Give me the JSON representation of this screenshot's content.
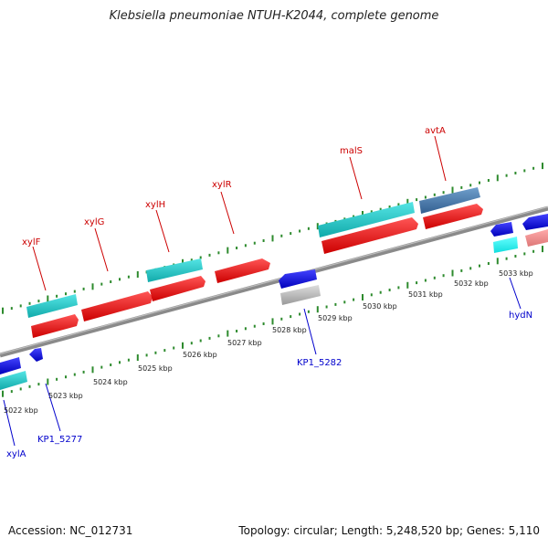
{
  "title": "Klebsiella pneumoniae NTUH-K2044, complete genome",
  "footer": {
    "accession": "Accession: NC_012731",
    "summary": "Topology: circular; Length: 5,248,520 bp; Genes: 5,110"
  },
  "scale_labels": [
    "5022 kbp",
    "5023 kbp",
    "5024 kbp",
    "5025 kbp",
    "5026 kbp",
    "5027 kbp",
    "5028 kbp",
    "5029 kbp",
    "5030 kbp",
    "5031 kbp",
    "5032 kbp",
    "5033 kbp"
  ],
  "gene_labels": {
    "xylF": "xylF",
    "xylG": "xylG",
    "xylH": "xylH",
    "xylR": "xylR",
    "malS": "malS",
    "avtA": "avtA",
    "xylA": "xylA",
    "KP1_5277": "KP1_5277",
    "KP1_5282": "KP1_5282",
    "hydN": "hydN"
  },
  "colors": {
    "forward_label": "#cc0000",
    "reverse_label": "#0000cc",
    "backbone": "#8a8a8a",
    "tick": "#2e8b2e",
    "cds_red": "#ee1111",
    "cds_cyan": "#22cccc",
    "cds_blue": "#1111dd",
    "cds_steel": "#4a7fb0",
    "cds_grey": "#bbbbbb",
    "cds_pink": "#ee8888",
    "cds_aqua": "#33eeee"
  }
}
